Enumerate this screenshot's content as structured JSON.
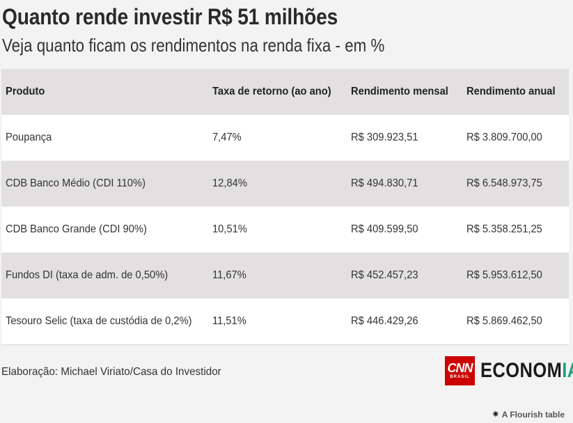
{
  "chart_data": {
    "type": "table",
    "title": "Quanto rende investir R$ 51 milhões",
    "subtitle": "Veja quanto ficam os rendimentos na renda fixa - em %",
    "columns": [
      "Produto",
      "Taxa de retorno (ao ano)",
      "Rendimento mensal",
      "Rendimento anual"
    ],
    "rows": [
      [
        "Poupança",
        "7,47%",
        "R$ 309.923,51",
        "R$ 3.809.700,00"
      ],
      [
        "CDB Banco Médio (CDI 110%)",
        "12,84%",
        "R$ 494.830,71",
        "R$ 6.548.973,75"
      ],
      [
        "CDB Banco Grande (CDI 90%)",
        "10,51%",
        "R$ 409.599,50",
        "R$ 5.358.251,25"
      ],
      [
        "Fundos DI (taxa de adm. de 0,50%)",
        "11,67%",
        "R$ 452.457,23",
        "R$ 5.953.612,50"
      ],
      [
        "Tesouro Selic (taxa de custódia de 0,2%)",
        "11,51%",
        "R$ 446.429,26",
        "R$ 5.869.462,50"
      ]
    ]
  },
  "footer": {
    "credit": "Elaboração: Michael Viriato/Casa do Investidor",
    "logo_cnn": "CNN",
    "logo_brasil": "BRASIL",
    "logo_economia_main": "ECONOM",
    "logo_economia_accent": "IA",
    "flourish_label": "A Flourish table"
  },
  "colors": {
    "header_row": "#e2e0e1",
    "shaded_row": "#e2e0e1",
    "plain_row": "#ffffff",
    "background": "#f4f3f3",
    "cnn_red": "#cc0000",
    "economia_accent": "#1aa37a"
  },
  "icons": {
    "flourish": "flourish-star-icon"
  }
}
